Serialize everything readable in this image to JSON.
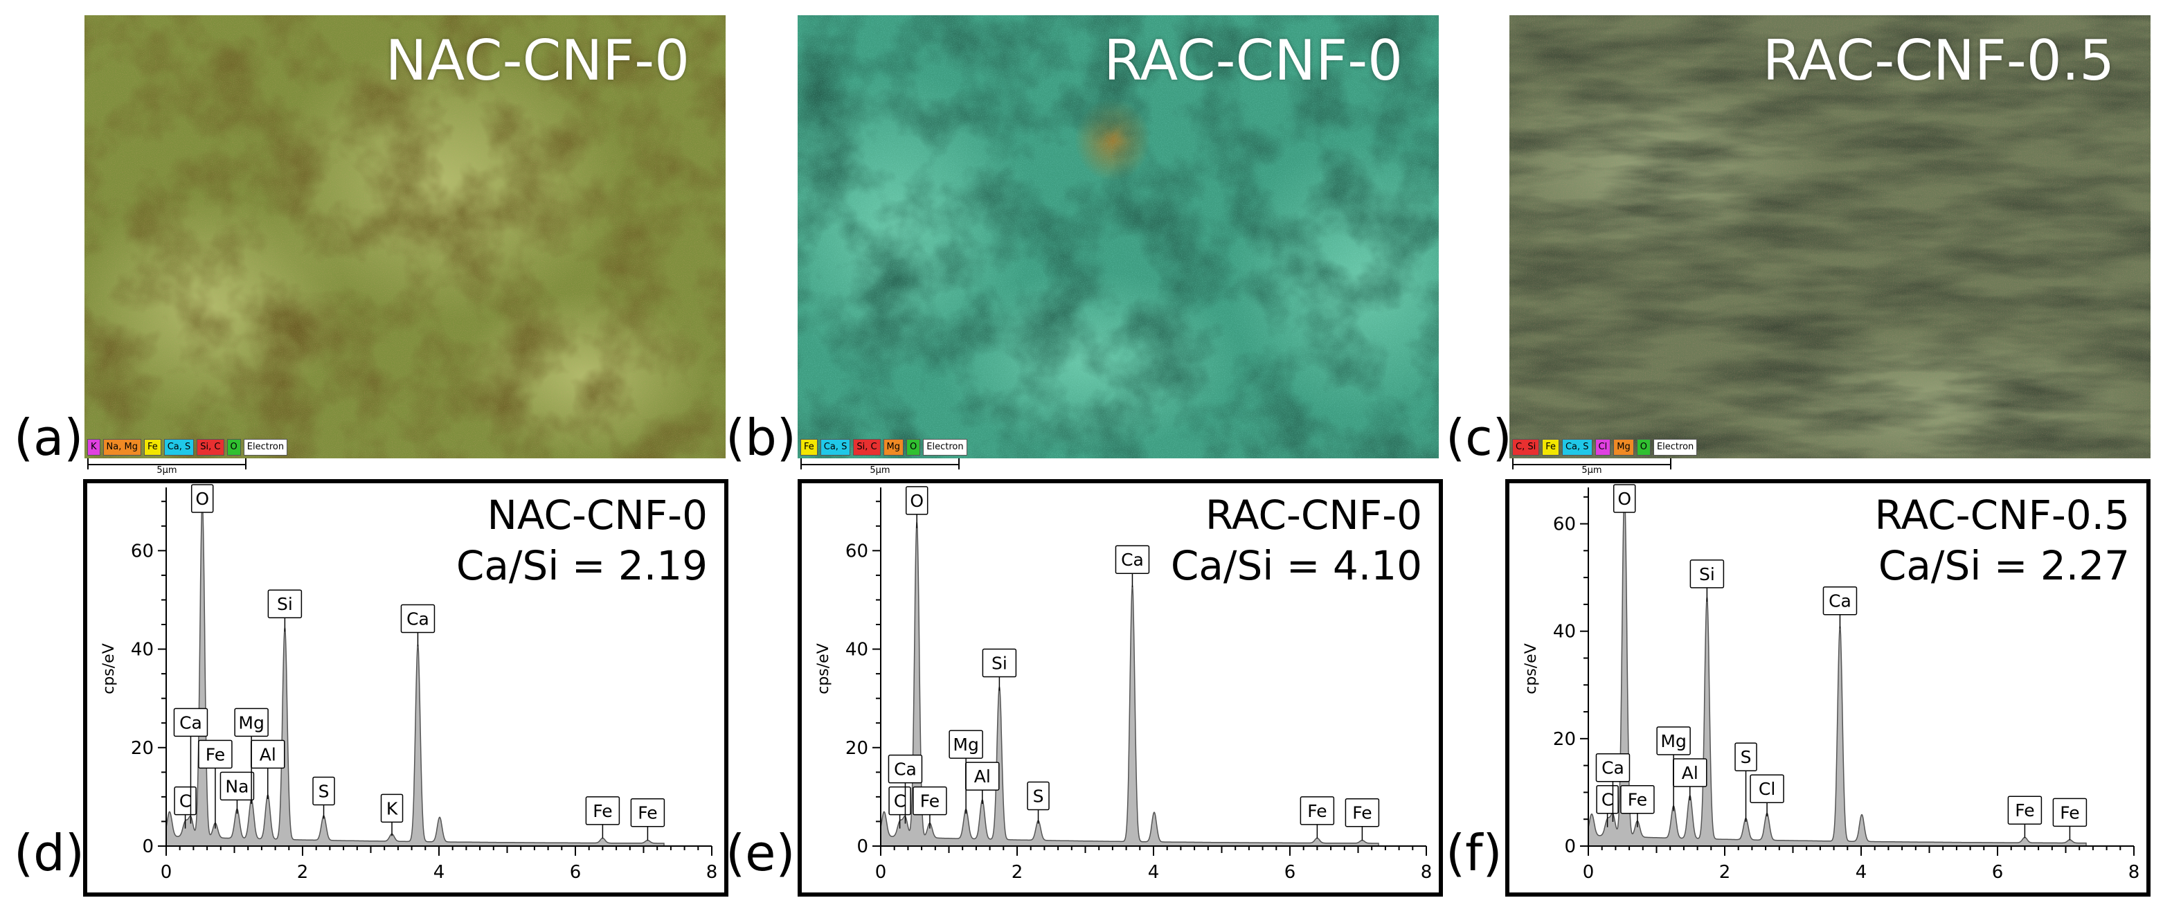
{
  "micrographs": [
    {
      "title": "NAC-CNF-0",
      "panel": "(a)",
      "scale": "5µm",
      "legend": [
        {
          "label": "K",
          "color": "#e040e0"
        },
        {
          "label": "Na, Mg",
          "color": "#f08a24"
        },
        {
          "label": "Fe",
          "color": "#f3e600"
        },
        {
          "label": "Ca, S",
          "color": "#20c8e8"
        },
        {
          "label": "Si, C",
          "color": "#e83030"
        },
        {
          "label": "O",
          "color": "#30c030"
        },
        {
          "label": "Electron",
          "color": "#ffffff"
        }
      ]
    },
    {
      "title": "RAC-CNF-0",
      "panel": "(b)",
      "scale": "5µm",
      "legend": [
        {
          "label": "Fe",
          "color": "#f3e600"
        },
        {
          "label": "Ca, S",
          "color": "#20c8e8"
        },
        {
          "label": "Si, C",
          "color": "#e83030"
        },
        {
          "label": "Mg",
          "color": "#f08a24"
        },
        {
          "label": "O",
          "color": "#30c030"
        },
        {
          "label": "Electron",
          "color": "#ffffff"
        }
      ]
    },
    {
      "title": "RAC-CNF-0.5",
      "panel": "(c)",
      "scale": "5µm",
      "legend": [
        {
          "label": "C, Si",
          "color": "#e83030"
        },
        {
          "label": "Fe",
          "color": "#f3e600"
        },
        {
          "label": "Ca, S",
          "color": "#20c8e8"
        },
        {
          "label": "Cl",
          "color": "#e040e0"
        },
        {
          "label": "Mg",
          "color": "#f08a24"
        },
        {
          "label": "O",
          "color": "#30c030"
        },
        {
          "label": "Electron",
          "color": "#ffffff"
        }
      ]
    }
  ],
  "chart_data": [
    {
      "type": "line",
      "title": "NAC-CNF-0",
      "annotation": "Ca/Si = 2.19",
      "panel": "(d)",
      "ylabel": "cps/eV",
      "xlim": [
        0,
        8
      ],
      "ylim": [
        0,
        72
      ],
      "xticks": [
        "0",
        "2",
        "4",
        "6",
        "8"
      ],
      "yticks": [
        "0",
        "20",
        "40",
        "60"
      ],
      "peaks": [
        {
          "x": 0.05,
          "y": 5
        },
        {
          "x": 0.28,
          "y": 3
        },
        {
          "x": 0.36,
          "y": 4
        },
        {
          "x": 0.53,
          "y": 68
        },
        {
          "x": 0.72,
          "y": 3
        },
        {
          "x": 1.04,
          "y": 6
        },
        {
          "x": 1.25,
          "y": 8
        },
        {
          "x": 1.49,
          "y": 9
        },
        {
          "x": 1.74,
          "y": 43
        },
        {
          "x": 2.31,
          "y": 5
        },
        {
          "x": 3.31,
          "y": 1.5
        },
        {
          "x": 3.69,
          "y": 40
        },
        {
          "x": 4.01,
          "y": 5
        },
        {
          "x": 6.4,
          "y": 1
        },
        {
          "x": 7.06,
          "y": 0.6
        }
      ],
      "labels": [
        {
          "text": "O",
          "x": 0.53,
          "y": 68
        },
        {
          "text": "Si",
          "x": 1.74,
          "y": 43
        },
        {
          "text": "Ca",
          "x": 3.69,
          "y": 40
        },
        {
          "text": "Na",
          "x": 1.04,
          "y": 6
        },
        {
          "text": "Al",
          "x": 1.49,
          "y": 9
        },
        {
          "text": "Mg",
          "x": 1.25,
          "y": 8
        },
        {
          "text": "C",
          "x": 0.28,
          "y": 3
        },
        {
          "text": "Fe",
          "x": 0.72,
          "y": 3
        },
        {
          "text": "Ca",
          "x": 0.36,
          "y": 4
        },
        {
          "text": "S",
          "x": 2.31,
          "y": 5
        },
        {
          "text": "K",
          "x": 3.31,
          "y": 1.5
        },
        {
          "text": "Fe",
          "x": 6.4,
          "y": 1
        },
        {
          "text": "Fe",
          "x": 7.06,
          "y": 0.6
        }
      ]
    },
    {
      "type": "line",
      "title": "RAC-CNF-0",
      "annotation": "Ca/Si = 4.10",
      "panel": "(e)",
      "ylabel": "cps/eV",
      "xlim": [
        0,
        8
      ],
      "ylim": [
        0,
        72
      ],
      "xticks": [
        "0",
        "2",
        "4",
        "6",
        "8"
      ],
      "yticks": [
        "0",
        "20",
        "40",
        "60"
      ],
      "peaks": [
        {
          "x": 0.05,
          "y": 5
        },
        {
          "x": 0.28,
          "y": 3
        },
        {
          "x": 0.36,
          "y": 4
        },
        {
          "x": 0.53,
          "y": 64
        },
        {
          "x": 0.72,
          "y": 3
        },
        {
          "x": 1.25,
          "y": 6
        },
        {
          "x": 1.49,
          "y": 8
        },
        {
          "x": 1.74,
          "y": 31
        },
        {
          "x": 2.31,
          "y": 4
        },
        {
          "x": 3.69,
          "y": 52
        },
        {
          "x": 4.01,
          "y": 6
        },
        {
          "x": 6.4,
          "y": 1
        },
        {
          "x": 7.06,
          "y": 0.6
        }
      ],
      "labels": [
        {
          "text": "O",
          "x": 0.53,
          "y": 64
        },
        {
          "text": "Ca",
          "x": 3.69,
          "y": 52
        },
        {
          "text": "Si",
          "x": 1.74,
          "y": 31
        },
        {
          "text": "Al",
          "x": 1.49,
          "y": 8
        },
        {
          "text": "Mg",
          "x": 1.25,
          "y": 6
        },
        {
          "text": "C",
          "x": 0.28,
          "y": 3
        },
        {
          "text": "Fe",
          "x": 0.72,
          "y": 3
        },
        {
          "text": "Ca",
          "x": 0.36,
          "y": 4
        },
        {
          "text": "S",
          "x": 2.31,
          "y": 4
        },
        {
          "text": "Fe",
          "x": 6.4,
          "y": 1
        },
        {
          "text": "Fe",
          "x": 7.06,
          "y": 0.6
        }
      ]
    },
    {
      "type": "line",
      "title": "RAC-CNF-0.5",
      "annotation": "Ca/Si = 2.27",
      "panel": "(f)",
      "ylabel": "cps/eV",
      "xlim": [
        0,
        8
      ],
      "ylim": [
        0,
        66
      ],
      "xticks": [
        "0",
        "2",
        "4",
        "6",
        "8"
      ],
      "yticks": [
        "0",
        "20",
        "40",
        "60"
      ],
      "peaks": [
        {
          "x": 0.05,
          "y": 4
        },
        {
          "x": 0.28,
          "y": 3
        },
        {
          "x": 0.36,
          "y": 4
        },
        {
          "x": 0.53,
          "y": 64
        },
        {
          "x": 0.72,
          "y": 3
        },
        {
          "x": 1.25,
          "y": 6
        },
        {
          "x": 1.49,
          "y": 8
        },
        {
          "x": 1.74,
          "y": 45
        },
        {
          "x": 2.31,
          "y": 4
        },
        {
          "x": 2.62,
          "y": 5
        },
        {
          "x": 3.69,
          "y": 40
        },
        {
          "x": 4.01,
          "y": 5
        },
        {
          "x": 6.4,
          "y": 1
        },
        {
          "x": 7.06,
          "y": 0.6
        }
      ],
      "labels": [
        {
          "text": "O",
          "x": 0.53,
          "y": 64
        },
        {
          "text": "Si",
          "x": 1.74,
          "y": 45
        },
        {
          "text": "Ca",
          "x": 3.69,
          "y": 40
        },
        {
          "text": "Al",
          "x": 1.49,
          "y": 8
        },
        {
          "text": "Cl",
          "x": 2.62,
          "y": 5
        },
        {
          "text": "Mg",
          "x": 1.25,
          "y": 6
        },
        {
          "text": "C",
          "x": 0.28,
          "y": 3
        },
        {
          "text": "Fe",
          "x": 0.72,
          "y": 3
        },
        {
          "text": "Ca",
          "x": 0.36,
          "y": 4
        },
        {
          "text": "S",
          "x": 2.31,
          "y": 4
        },
        {
          "text": "Fe",
          "x": 6.4,
          "y": 1
        },
        {
          "text": "Fe",
          "x": 7.06,
          "y": 0.6
        }
      ]
    }
  ]
}
